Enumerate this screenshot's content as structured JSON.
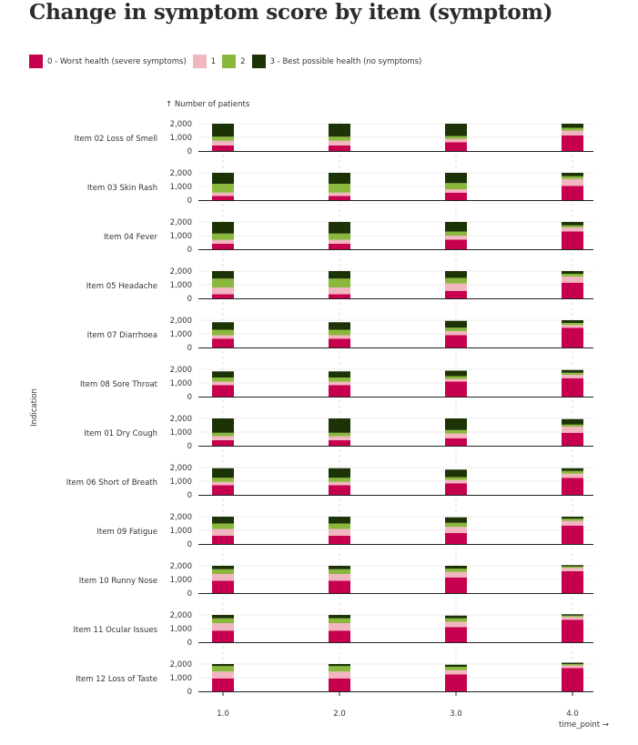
{
  "title": "Change in symptom score by item (symptom)",
  "legend": [
    {
      "label": "0 - Worst health (severe symptoms)",
      "color": "#c6004f"
    },
    {
      "label": "1",
      "color": "#f1b6bf"
    },
    {
      "label": "2",
      "color": "#8ab83d"
    },
    {
      "label": "3 - Best possible health (no symptoms)",
      "color": "#1b3305"
    }
  ],
  "chart_data": {
    "type": "bar",
    "stacked": true,
    "faceted_by": "Indication",
    "y_axis_label": "↑ Number of patients",
    "x_axis_label": "time_point →",
    "facet_label": "Indication",
    "y_ticks": [
      "0",
      "1,000",
      "2,000"
    ],
    "x_ticks": [
      "1.0",
      "2.0",
      "3.0",
      "4.0"
    ],
    "x_values": [
      1,
      2,
      3,
      4
    ],
    "ylim": [
      0,
      2000
    ],
    "series_names": [
      "0 - Worst health (severe symptoms)",
      "1",
      "2",
      "3 - Best possible health (no symptoms)"
    ],
    "facets": [
      {
        "name": "Item 02 Loss of Smell",
        "values": [
          [
            400,
            350,
            300,
            950
          ],
          [
            400,
            350,
            300,
            950
          ],
          [
            650,
            250,
            200,
            900
          ],
          [
            1150,
            350,
            200,
            300
          ]
        ]
      },
      {
        "name": "Item 03 Skin Rash",
        "values": [
          [
            300,
            250,
            650,
            800
          ],
          [
            300,
            250,
            650,
            800
          ],
          [
            550,
            250,
            450,
            750
          ],
          [
            1050,
            500,
            200,
            250
          ]
        ]
      },
      {
        "name": "Item 04 Fever",
        "values": [
          [
            400,
            300,
            450,
            850
          ],
          [
            400,
            300,
            450,
            850
          ],
          [
            700,
            300,
            300,
            700
          ],
          [
            1300,
            300,
            150,
            250
          ]
        ]
      },
      {
        "name": "Item 05 Headache",
        "values": [
          [
            300,
            500,
            650,
            550
          ],
          [
            300,
            500,
            650,
            550
          ],
          [
            550,
            550,
            400,
            500
          ],
          [
            1150,
            450,
            200,
            200
          ]
        ]
      },
      {
        "name": "Item 07 Diarrhoea",
        "values": [
          [
            650,
            250,
            400,
            550
          ],
          [
            650,
            250,
            400,
            550
          ],
          [
            900,
            300,
            250,
            500
          ],
          [
            1450,
            200,
            150,
            200
          ]
        ]
      },
      {
        "name": "Item 08 Sore Throat",
        "values": [
          [
            850,
            250,
            300,
            450
          ],
          [
            850,
            250,
            300,
            450
          ],
          [
            1100,
            200,
            200,
            400
          ],
          [
            1350,
            250,
            150,
            200
          ]
        ]
      },
      {
        "name": "Item 01 Dry Cough",
        "values": [
          [
            400,
            300,
            250,
            1050
          ],
          [
            400,
            300,
            250,
            1050
          ],
          [
            550,
            350,
            250,
            850
          ],
          [
            950,
            450,
            150,
            400
          ]
        ]
      },
      {
        "name": "Item 06 Short of Breath",
        "values": [
          [
            700,
            250,
            300,
            700
          ],
          [
            700,
            250,
            300,
            700
          ],
          [
            850,
            250,
            200,
            550
          ],
          [
            1250,
            300,
            200,
            200
          ]
        ]
      },
      {
        "name": "Item 09 Fatigue",
        "values": [
          [
            600,
            500,
            400,
            500
          ],
          [
            600,
            500,
            400,
            500
          ],
          [
            800,
            450,
            300,
            400
          ],
          [
            1350,
            350,
            150,
            150
          ]
        ]
      },
      {
        "name": "Item 10 Runny Nose",
        "values": [
          [
            900,
            500,
            350,
            250
          ],
          [
            900,
            500,
            350,
            250
          ],
          [
            1150,
            400,
            250,
            200
          ],
          [
            1600,
            250,
            100,
            100
          ]
        ]
      },
      {
        "name": "Item 11 Ocular Issues",
        "values": [
          [
            850,
            550,
            350,
            250
          ],
          [
            850,
            550,
            350,
            250
          ],
          [
            1100,
            400,
            250,
            200
          ],
          [
            1650,
            200,
            100,
            100
          ]
        ]
      },
      {
        "name": "Item 12 Loss of Taste",
        "values": [
          [
            950,
            500,
            400,
            150
          ],
          [
            950,
            500,
            400,
            150
          ],
          [
            1250,
            300,
            250,
            150
          ],
          [
            1700,
            200,
            100,
            100
          ]
        ]
      }
    ]
  }
}
